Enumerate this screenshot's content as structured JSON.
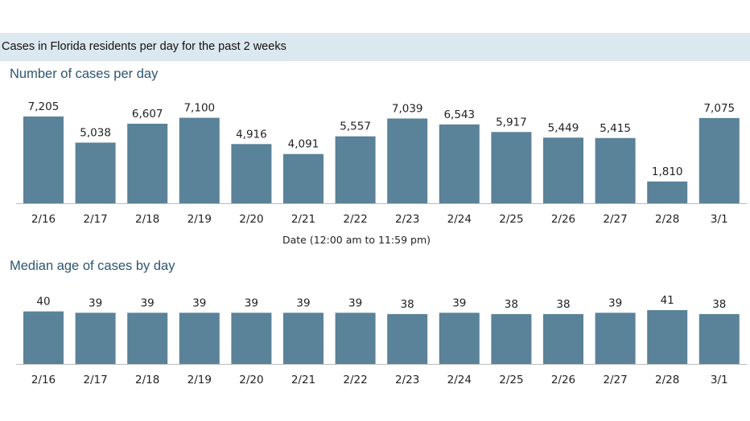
{
  "header": {
    "title": "Cases in Florida residents per day for the past 2 weeks"
  },
  "colors": {
    "bar": "#5a8299",
    "header_band": "#dbe8f0",
    "section_title": "#2c5772"
  },
  "chart_data": [
    {
      "type": "bar",
      "title": "Number of cases per day",
      "xlabel": "Date (12:00 am to 11:59 pm)",
      "ylabel": "",
      "categories": [
        "2/16",
        "2/17",
        "2/18",
        "2/19",
        "2/20",
        "2/21",
        "2/22",
        "2/23",
        "2/24",
        "2/25",
        "2/26",
        "2/27",
        "2/28",
        "3/1"
      ],
      "values": [
        7205,
        5038,
        6607,
        7100,
        4916,
        4091,
        5557,
        7039,
        6543,
        5917,
        5449,
        5415,
        1810,
        7075
      ],
      "value_labels": [
        "7,205",
        "5,038",
        "6,607",
        "7,100",
        "4,916",
        "4,091",
        "5,557",
        "7,039",
        "6,543",
        "5,917",
        "5,449",
        "5,415",
        "1,810",
        "7,075"
      ],
      "ylim": [
        0,
        7205
      ],
      "grid": false
    },
    {
      "type": "bar",
      "title": "Median age of cases by day",
      "xlabel": "",
      "ylabel": "",
      "categories": [
        "2/16",
        "2/17",
        "2/18",
        "2/19",
        "2/20",
        "2/21",
        "2/22",
        "2/23",
        "2/24",
        "2/25",
        "2/26",
        "2/27",
        "2/28",
        "3/1"
      ],
      "values": [
        40,
        39,
        39,
        39,
        39,
        39,
        39,
        38,
        39,
        38,
        38,
        39,
        41,
        38
      ],
      "value_labels": [
        "40",
        "39",
        "39",
        "39",
        "39",
        "39",
        "39",
        "38",
        "39",
        "38",
        "38",
        "39",
        "41",
        "38"
      ],
      "ylim": [
        0,
        41
      ],
      "grid": false
    }
  ]
}
